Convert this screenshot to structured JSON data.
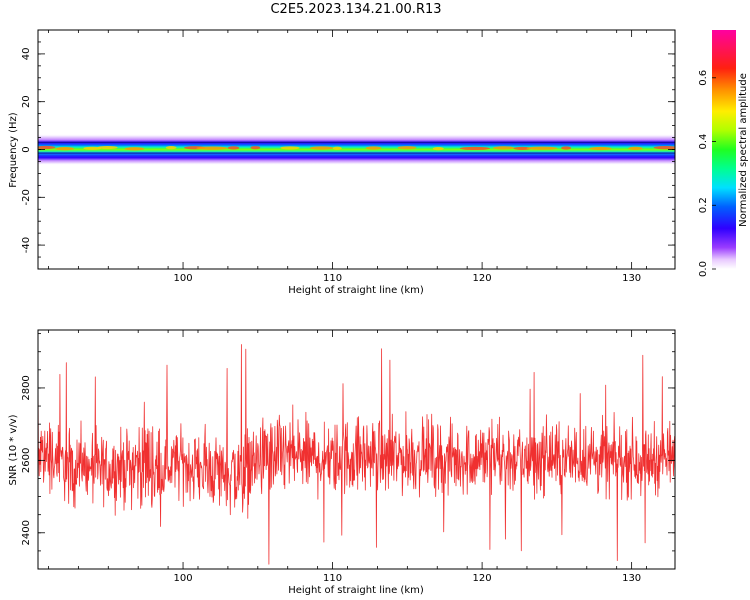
{
  "figure_title": "C2E5.2023.134.21.00.R13",
  "chart_data": [
    {
      "type": "heatmap",
      "xlabel": "Height of straight line (km)",
      "ylabel": "Frequency (Hz)",
      "xlim": [
        90.3,
        132.9
      ],
      "ylim": [
        -50,
        50
      ],
      "xticks": [
        100,
        110,
        120,
        130
      ],
      "yticks": [
        40,
        20,
        0,
        -20,
        -40
      ],
      "colorbar": {
        "label": "Normalized spectral amplitude",
        "range": [
          0.0,
          0.75
        ],
        "ticks": [
          0.0,
          0.2,
          0.4,
          0.6
        ],
        "colormap": "gist_ncar"
      },
      "description_of_data": {
        "band_center_hz": 0,
        "core_peak_half_width_hz": 1,
        "band_extent_hz": [
          -5,
          5
        ]
      }
    },
    {
      "type": "line",
      "xlabel": "Height of straight line (km)",
      "ylabel": "SNR (10 * v/v)",
      "xlim": [
        90.3,
        132.9
      ],
      "ylim": [
        2300,
        2960
      ],
      "xticks": [
        100,
        110,
        120,
        130
      ],
      "yticks": [
        2400,
        2600,
        2800
      ],
      "series_color": "#f03030",
      "series": [
        {
          "x": [
            90.5,
            91,
            92,
            93,
            94,
            95,
            96,
            97,
            97.7,
            98.3,
            99,
            100,
            101,
            102,
            103,
            103.8,
            104.5,
            105,
            106,
            107,
            108,
            109,
            110,
            111,
            112,
            113,
            114,
            115,
            116,
            117,
            118,
            119,
            120,
            121,
            122,
            123,
            124,
            125,
            126,
            127,
            128,
            129,
            130,
            131,
            132,
            132.9
          ],
          "y": [
            2640,
            2610,
            2590,
            2580,
            2570,
            2575,
            2580,
            2590,
            2600,
            2560,
            2585,
            2590,
            2580,
            2575,
            2570,
            2560,
            2585,
            2600,
            2610,
            2615,
            2610,
            2605,
            2600,
            2610,
            2615,
            2610,
            2605,
            2610,
            2615,
            2610,
            2600,
            2605,
            2610,
            2615,
            2605,
            2600,
            2610,
            2605,
            2600,
            2610,
            2605,
            2600,
            2605,
            2600,
            2610,
            2600
          ],
          "spread": [
            130,
            120,
            110,
            110,
            100,
            105,
            110,
            125,
            150,
            140,
            110,
            100,
            105,
            110,
            120,
            150,
            120,
            115,
            120,
            125,
            115,
            110,
            110,
            115,
            115,
            110,
            110,
            115,
            115,
            110,
            105,
            110,
            110,
            115,
            110,
            105,
            110,
            110,
            105,
            110,
            110,
            105,
            110,
            105,
            105,
            100
          ]
        }
      ]
    }
  ]
}
